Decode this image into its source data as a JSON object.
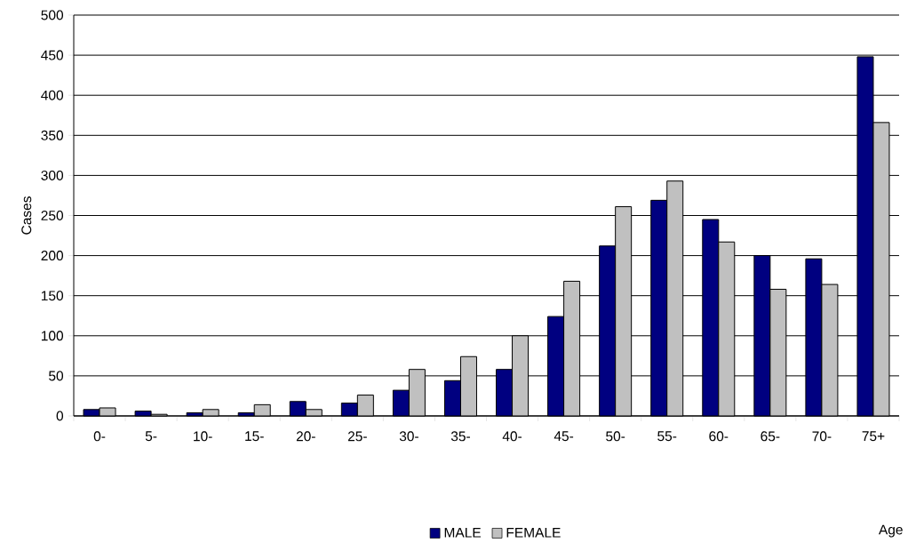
{
  "chart_data": {
    "type": "bar",
    "annotations": [
      "Age"
    ],
    "ylabel": "Cases",
    "categories": [
      "0-",
      "5-",
      "10-",
      "15-",
      "20-",
      "25-",
      "30-",
      "35-",
      "40-",
      "45-",
      "50-",
      "55-",
      "60-",
      "65-",
      "70-",
      "75+"
    ],
    "series": [
      {
        "name": "MALE",
        "color": "#000080",
        "values": [
          8,
          6,
          4,
          4,
          18,
          16,
          32,
          44,
          58,
          124,
          212,
          269,
          245,
          200,
          196,
          448
        ]
      },
      {
        "name": "FEMALE",
        "color": "#c0c0c0",
        "values": [
          10,
          2,
          8,
          14,
          8,
          26,
          58,
          74,
          100,
          168,
          261,
          293,
          217,
          158,
          164,
          366
        ]
      }
    ],
    "ylim": [
      0,
      500
    ],
    "yticks": [
      0,
      50,
      100,
      150,
      200,
      250,
      300,
      350,
      400,
      450,
      500
    ],
    "grid": "y",
    "legend": "bottom"
  }
}
